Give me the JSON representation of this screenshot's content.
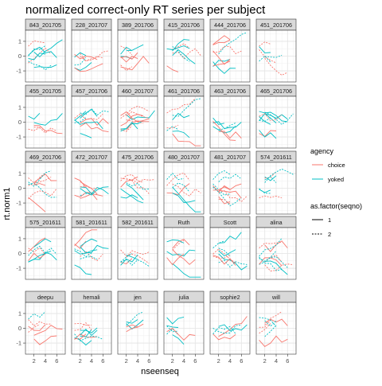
{
  "chart_data": {
    "type": "line",
    "facet_layout": "grid",
    "title": "normalized correct-only RT series per subject",
    "xlabel": "nseenseq",
    "ylabel": "rt.norm1",
    "x_ticks": [
      2,
      4,
      6
    ],
    "y_ticks": [
      -1,
      0,
      1
    ],
    "xlim": [
      0.5,
      7.5
    ],
    "ylim": [
      -1.75,
      1.75
    ],
    "grid": true,
    "legend": {
      "placement": "right",
      "color_title": "agency",
      "color_entries": [
        {
          "label": "choice",
          "color": "#F8766D"
        },
        {
          "label": "yoked",
          "color": "#00BFC4"
        }
      ],
      "linetype_title": "as.factor(seqno)",
      "linetype_entries": [
        {
          "label": "1",
          "dash": "solid"
        },
        {
          "label": "2",
          "dash": "dashed"
        }
      ]
    },
    "panels": [
      "843_201705",
      "228_201707",
      "389_201706",
      "415_201706",
      "444_201706",
      "451_201706",
      "455_201705",
      "457_201706",
      "460_201707",
      "461_201706",
      "463_201706",
      "465_201706",
      "469_201706",
      "472_201707",
      "475_201706",
      "480_201707",
      "481_201707",
      "574_201611",
      "575_201611",
      "581_201611",
      "582_201611",
      "Ruth",
      "Scott",
      "alina",
      "deepu",
      "hemali",
      "jen",
      "julia",
      "sophie2",
      "will"
    ]
  }
}
